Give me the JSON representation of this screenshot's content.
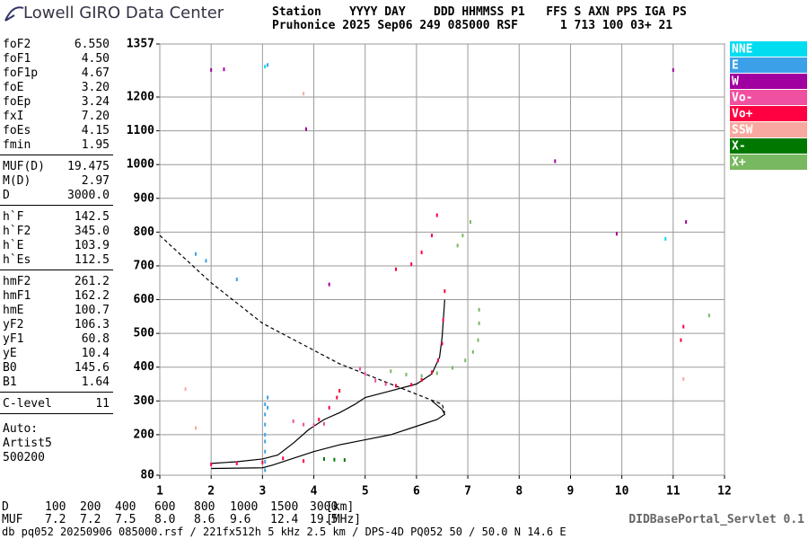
{
  "header": {
    "brand": "Lowell GIRO Data Center",
    "line1": "Station    YYYY DAY    DDD HHMMSS P1   FFS S AXN PPS IGA PS",
    "line2": "Pruhonice 2025 Sep06 249 085000 RSF      1 713 100 03+ 21"
  },
  "params": [
    [
      [
        "foF2",
        "6.550"
      ],
      [
        "foF1",
        "4.50"
      ],
      [
        "foF1p",
        "4.67"
      ],
      [
        "foE",
        "3.20"
      ],
      [
        "foEp",
        "3.24"
      ],
      [
        "fxI",
        "7.20"
      ],
      [
        "foEs",
        "4.15"
      ],
      [
        "fmin",
        "1.95"
      ]
    ],
    [
      [
        "MUF(D)",
        "19.475"
      ],
      [
        "M(D)",
        "2.97"
      ],
      [
        "D",
        "3000.0"
      ]
    ],
    [
      [
        "h`F",
        "142.5"
      ],
      [
        "h`F2",
        "345.0"
      ],
      [
        "h`E",
        "103.9"
      ],
      [
        "h`Es",
        "112.5"
      ]
    ],
    [
      [
        "hmF2",
        "261.2"
      ],
      [
        "hmF1",
        "162.2"
      ],
      [
        "hmE",
        "100.7"
      ],
      [
        "yF2",
        "106.3"
      ],
      [
        "yF1",
        "60.8"
      ],
      [
        "yE",
        "10.4"
      ],
      [
        "B0",
        "145.6"
      ],
      [
        "B1",
        "1.64"
      ]
    ],
    [
      [
        "C-level",
        "11"
      ]
    ]
  ],
  "auto": [
    "Auto:",
    "Artist5",
    "500200"
  ],
  "chart_data": {
    "type": "scatter",
    "xlim": [
      1,
      12
    ],
    "ylim": [
      80,
      1357
    ],
    "xticks": [
      1,
      2,
      3,
      4,
      5,
      6,
      7,
      8,
      9,
      10,
      11,
      12
    ],
    "yticks": [
      80,
      200,
      300,
      400,
      500,
      600,
      700,
      800,
      900,
      1000,
      1100,
      1200,
      1357
    ],
    "grid": true,
    "legend": "right",
    "series": [
      {
        "name": "NNE",
        "color": "#00dcf0",
        "x": [
          3.05,
          10.85
        ],
        "y": [
          1290,
          780
        ]
      },
      {
        "name": "E",
        "color": "#3ca0e8",
        "x": [
          3.05,
          3.05,
          3.05,
          3.05,
          3.05,
          3.05,
          3.05,
          3.05,
          3.1,
          3.1,
          2.5,
          1.7,
          1.9,
          3.1
        ],
        "y": [
          95,
          120,
          150,
          180,
          200,
          230,
          260,
          290,
          310,
          280,
          660,
          735,
          715,
          1295
        ]
      },
      {
        "name": "W",
        "color": "#a000a0",
        "x": [
          2,
          2.25,
          3.85,
          4.3,
          9.9,
          11,
          11.25,
          8.7
        ],
        "y": [
          1280,
          1282,
          1105,
          645,
          795,
          1280,
          830,
          1010
        ]
      },
      {
        "name": "Vo-",
        "color": "#f050a0",
        "x": [
          3.6,
          3.8,
          4.0,
          4.2,
          4.9,
          5.0,
          5.2,
          5.4
        ],
        "y": [
          240,
          230,
          228,
          232,
          395,
          380,
          360,
          350
        ]
      },
      {
        "name": "Vo+",
        "color": "#ff0040",
        "x": [
          2,
          2.5,
          3,
          3.4,
          3.8,
          4.1,
          4.3,
          4.45,
          4.5,
          5.6,
          5.9,
          6.1,
          6.3,
          6.42,
          6.5,
          6.52,
          6.55,
          5.6,
          5.9,
          6.1,
          6.3,
          6.4,
          11.15,
          11.2
        ],
        "y": [
          112,
          115,
          118,
          130,
          122,
          245,
          280,
          310,
          330,
          345,
          348,
          362,
          385,
          420,
          470,
          540,
          625,
          690,
          705,
          740,
          790,
          850,
          480,
          520
        ]
      },
      {
        "name": "SSW",
        "color": "#f8a8a0",
        "x": [
          1.5,
          1.7,
          3.8,
          11.2
        ],
        "y": [
          335,
          220,
          1210,
          365
        ]
      },
      {
        "name": "X-",
        "color": "#007800",
        "x": [
          4.2,
          4.4,
          4.6
        ],
        "y": [
          128,
          126,
          125
        ]
      },
      {
        "name": "X+",
        "color": "#78b860",
        "x": [
          5.5,
          5.8,
          6.1,
          6.4,
          6.7,
          6.95,
          7.1,
          7.2,
          7.22,
          7.22,
          6.8,
          6.9,
          7.05,
          11.7
        ],
        "y": [
          388,
          378,
          374,
          382,
          398,
          420,
          445,
          480,
          530,
          570,
          760,
          790,
          830,
          553
        ]
      }
    ],
    "curves": [
      {
        "style": "solid",
        "x": [
          2,
          2.5,
          3,
          3.3,
          3.6,
          3.9,
          4.2,
          4.5,
          4.8,
          5,
          5.5,
          6,
          6.3,
          6.45,
          6.5,
          6.55
        ],
        "y": [
          115,
          120,
          128,
          140,
          175,
          215,
          245,
          265,
          290,
          310,
          330,
          350,
          380,
          430,
          490,
          600
        ]
      },
      {
        "style": "solid",
        "x": [
          2,
          3,
          3.2,
          3.6,
          4,
          4.5,
          5,
          5.5,
          6,
          6.4,
          6.55,
          6.5,
          6.3
        ],
        "y": [
          100,
          102,
          110,
          130,
          150,
          170,
          185,
          200,
          225,
          245,
          260,
          275,
          300
        ]
      },
      {
        "style": "dashed",
        "x": [
          1,
          1.5,
          2,
          2.5,
          3,
          3.5,
          4,
          4.5,
          5,
          5.5,
          6,
          6.5,
          6.55
        ],
        "y": [
          790,
          720,
          650,
          590,
          530,
          490,
          450,
          410,
          380,
          350,
          320,
          290,
          265
        ]
      }
    ]
  },
  "muf_table": {
    "d_label": "D",
    "d": [
      "100",
      "200",
      "400",
      "600",
      "800",
      "1000",
      "1500",
      "3000"
    ],
    "d_unit": "[km]",
    "muf_label": "MUF",
    "muf": [
      "7.2",
      "7.2",
      "7.5",
      "8.0",
      "8.6",
      "9.6",
      "12.4",
      "19.5"
    ],
    "muf_unit": "[MHz]"
  },
  "footer": {
    "servlet": "DIDBasePortal_Servlet 0.1",
    "info": "db pq052 20250906 085000.rsf / 221fx512h 5 kHz 2.5 km / DPS-4D PQ052 50 / 50.0 N 14.6 E"
  }
}
